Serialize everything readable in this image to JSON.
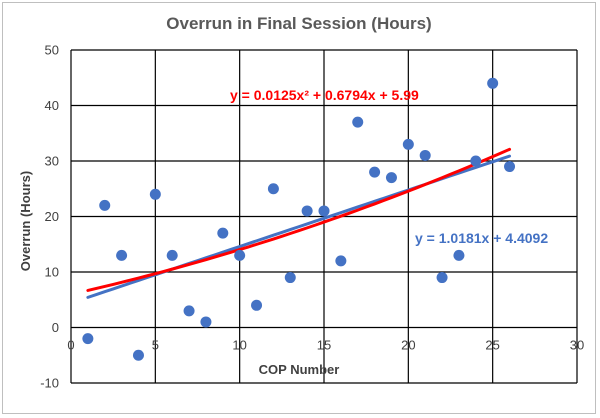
{
  "chart_data": {
    "type": "scatter",
    "title": "Overrun in Final Session (Hours)",
    "xlabel": "COP Number",
    "ylabel": "Overrun (Hours)",
    "xlim": [
      0,
      30
    ],
    "ylim": [
      -10,
      50
    ],
    "x_ticks": [
      0,
      5,
      10,
      15,
      20,
      25,
      30
    ],
    "y_ticks": [
      -10,
      0,
      10,
      20,
      30,
      40,
      50
    ],
    "grid": true,
    "points": [
      {
        "x": 1,
        "y": -2
      },
      {
        "x": 2,
        "y": 22
      },
      {
        "x": 3,
        "y": 13
      },
      {
        "x": 4,
        "y": -5
      },
      {
        "x": 5,
        "y": 24
      },
      {
        "x": 6,
        "y": 13
      },
      {
        "x": 7,
        "y": 3
      },
      {
        "x": 8,
        "y": 1
      },
      {
        "x": 9,
        "y": 17
      },
      {
        "x": 10,
        "y": 13
      },
      {
        "x": 11,
        "y": 4
      },
      {
        "x": 12,
        "y": 25
      },
      {
        "x": 13,
        "y": 9
      },
      {
        "x": 14,
        "y": 21
      },
      {
        "x": 15,
        "y": 21
      },
      {
        "x": 16,
        "y": 12
      },
      {
        "x": 17,
        "y": 37
      },
      {
        "x": 18,
        "y": 28
      },
      {
        "x": 19,
        "y": 27
      },
      {
        "x": 20,
        "y": 33
      },
      {
        "x": 21,
        "y": 31
      },
      {
        "x": 22,
        "y": 9
      },
      {
        "x": 23,
        "y": 13
      },
      {
        "x": 24,
        "y": 30
      },
      {
        "x": 25,
        "y": 44
      },
      {
        "x": 26,
        "y": 29
      }
    ],
    "point_color": "#4472c4",
    "trendlines": [
      {
        "type": "linear",
        "slope": 1.0181,
        "intercept": 4.4092,
        "x_range": [
          1,
          26
        ],
        "color": "#4472c4",
        "equation": "y = 1.0181x + 4.4092"
      },
      {
        "type": "polynomial",
        "a": 0.0125,
        "b": 0.6794,
        "c": 5.99,
        "x_range": [
          1,
          26
        ],
        "color": "#ff0000",
        "equation": "y = 0.0125x² + 0.6794x + 5.99"
      }
    ]
  }
}
